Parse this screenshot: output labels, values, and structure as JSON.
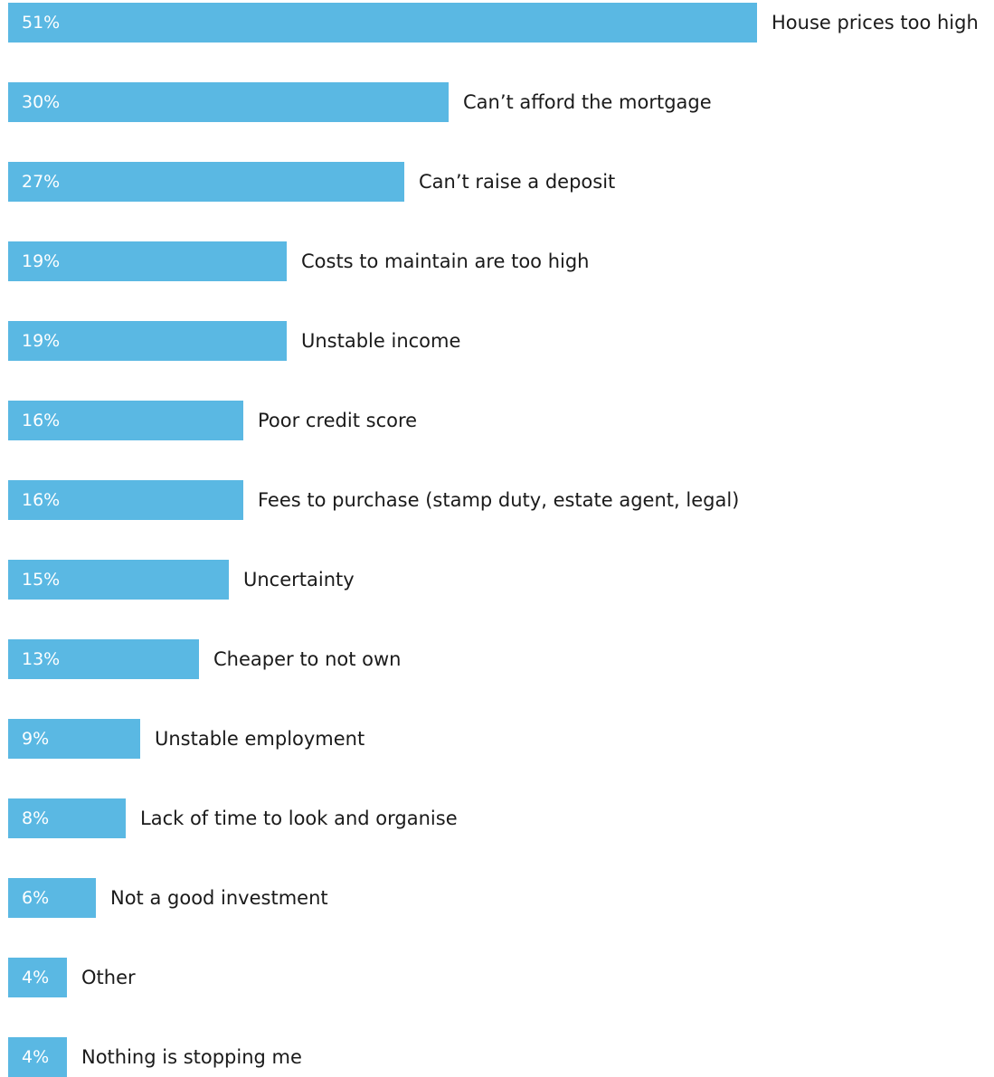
{
  "chart_data": {
    "type": "bar",
    "orientation": "horizontal",
    "unit": "%",
    "bar_color": "#5ab8e3",
    "label_color": "#1a1a1a",
    "value_label_color": "#ffffff",
    "xlim": [
      0,
      51
    ],
    "grid": false,
    "legend": "none",
    "categories": [
      "House prices too high",
      "Can’t afford the mortgage",
      "Can’t raise a deposit",
      "Costs to maintain are too high",
      "Unstable income",
      "Poor credit score",
      "Fees to purchase (stamp duty, estate agent, legal)",
      "Uncertainty",
      "Cheaper to not own",
      "Unstable employment",
      "Lack of time to look and organise",
      "Not a good investment",
      "Other",
      "Nothing is stopping me"
    ],
    "values": [
      51,
      30,
      27,
      19,
      19,
      16,
      16,
      15,
      13,
      9,
      8,
      6,
      4,
      4
    ],
    "value_labels": [
      "51%",
      "30%",
      "27%",
      "19%",
      "19%",
      "16%",
      "16%",
      "15%",
      "13%",
      "9%",
      "8%",
      "6%",
      "4%",
      "4%"
    ]
  }
}
